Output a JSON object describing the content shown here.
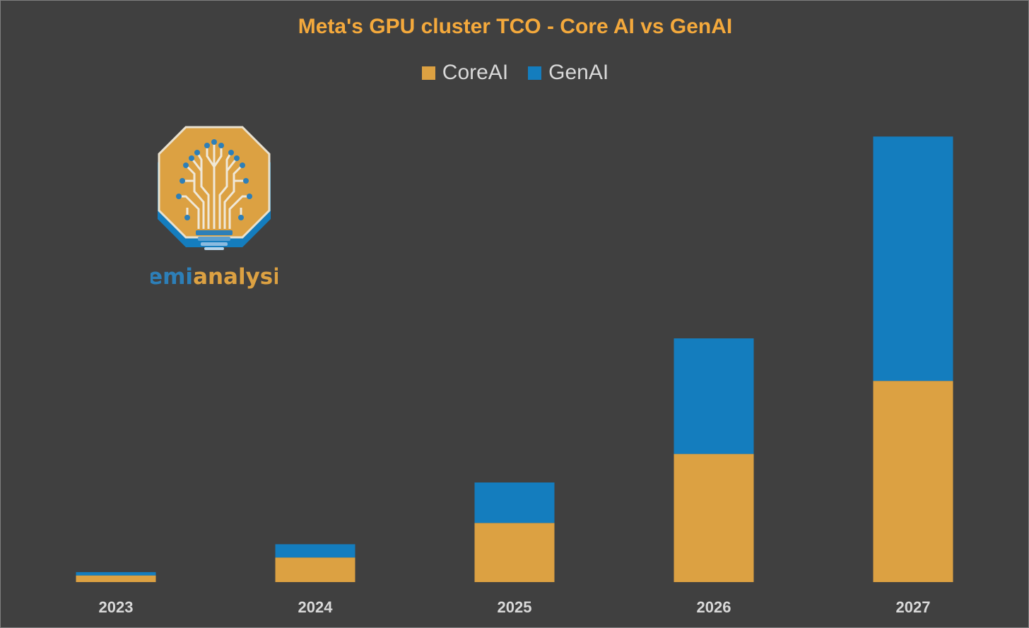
{
  "colors": {
    "background": "#404040",
    "title": "#f4a93c",
    "core_ai": "#dca142",
    "gen_ai": "#147dbe",
    "tick_label": "#d9d9d9",
    "logo_semi": "#2d7fb8",
    "logo_analysis": "#dca142"
  },
  "logo": {
    "brand_semi": "semi",
    "brand_analysis": "analysis"
  },
  "chart_data": {
    "type": "bar",
    "stacked": true,
    "title": "Meta's GPU cluster TCO - Core AI vs GenAI",
    "xlabel": "",
    "ylabel": "",
    "categories": [
      "2023",
      "2024",
      "2025",
      "2026",
      "2027"
    ],
    "series": [
      {
        "name": "CoreAI",
        "values": [
          1.0,
          3.7,
          8.9,
          19.3,
          30.3
        ]
      },
      {
        "name": "GenAI",
        "values": [
          0.5,
          2.0,
          6.1,
          17.4,
          36.8
        ]
      }
    ],
    "ylim": [
      0,
      70
    ],
    "grid": false,
    "legend": "top-center"
  }
}
